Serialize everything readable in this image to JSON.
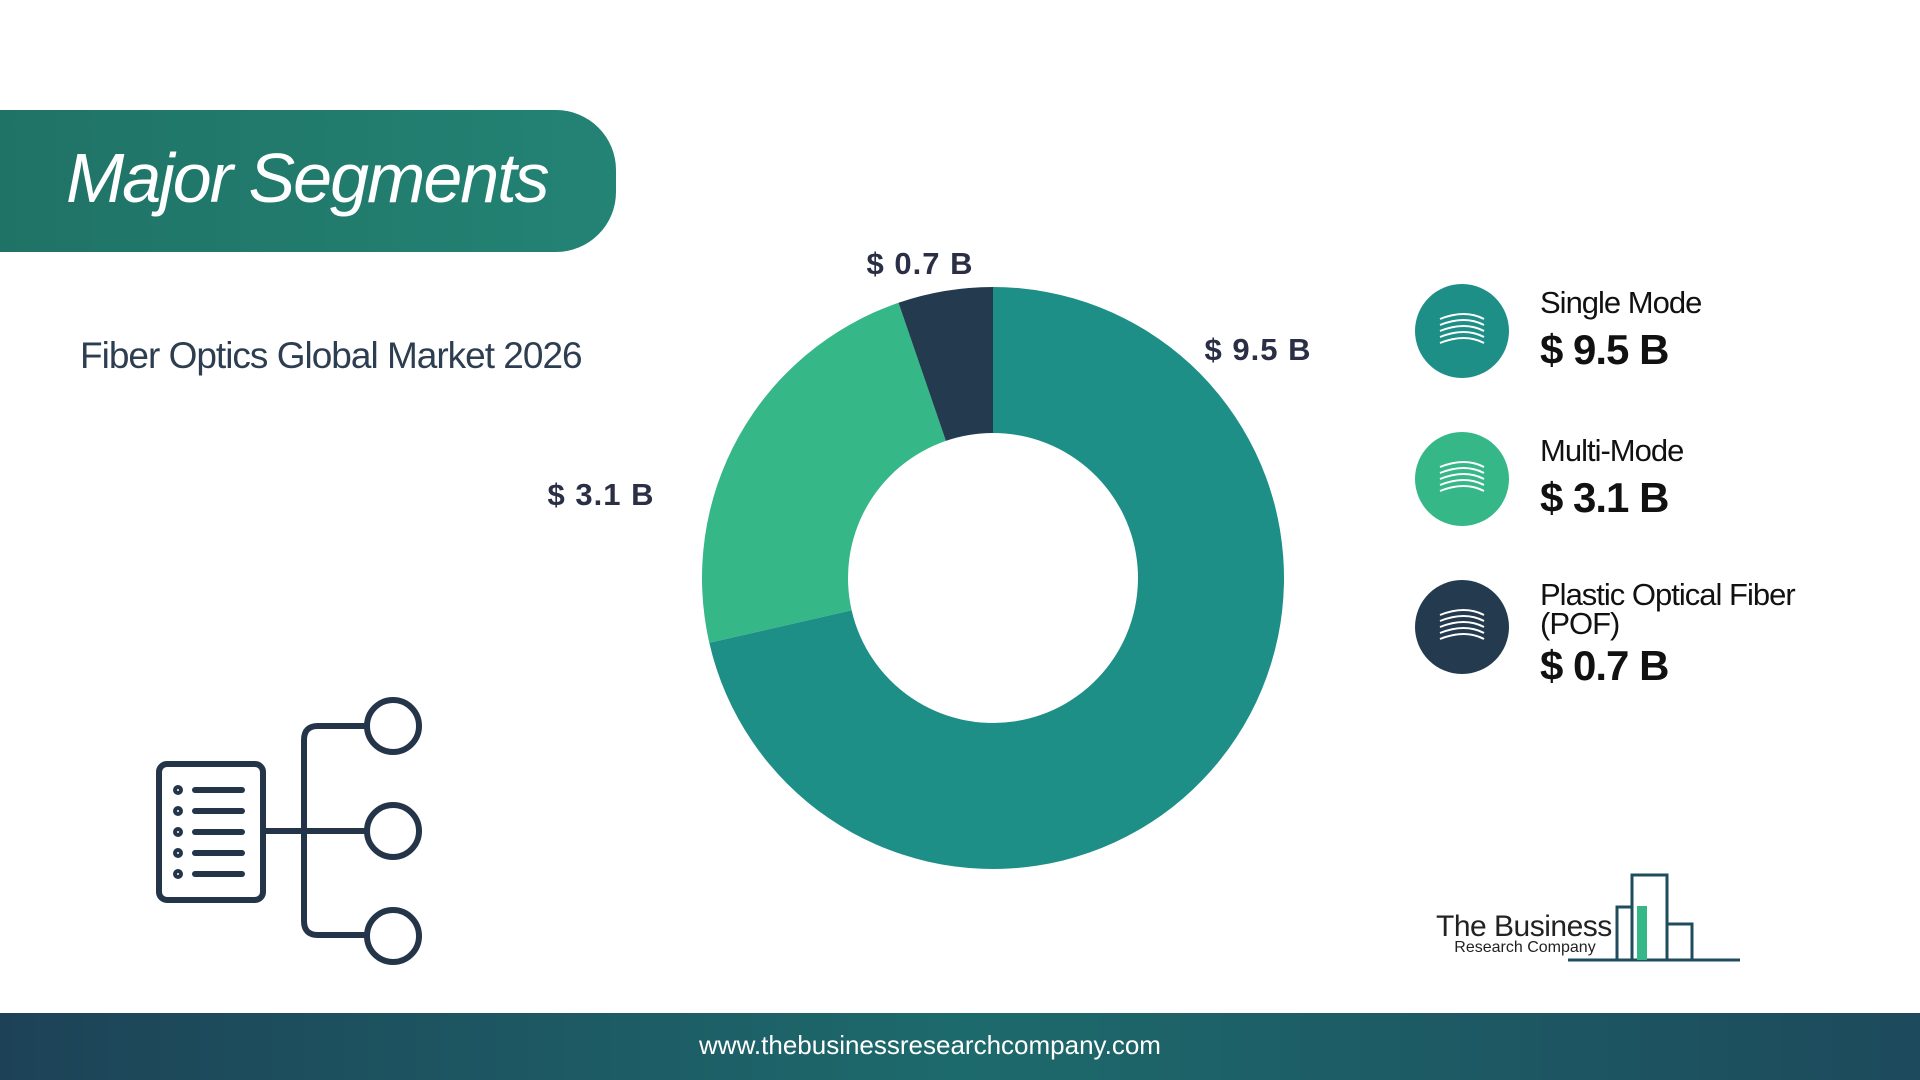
{
  "banner": "Major Segments",
  "chart_data": {
    "type": "pie",
    "donut": true,
    "title": "Fiber Optics Global Market 2026",
    "categories": [
      "Single Mode",
      "Multi-Mode",
      "Plastic Optical Fiber (POF)"
    ],
    "values": [
      9.5,
      3.1,
      0.7
    ],
    "value_labels": [
      "$ 9.5 B",
      "$ 3.1 B",
      "$ 0.7 B"
    ],
    "colors": [
      "#1d8f87",
      "#35b787",
      "#233a4f"
    ]
  },
  "logo": {
    "line1": "The Business",
    "line2": "Research Company"
  },
  "footer": {
    "url": "www.thebusinessresearchcompany.com"
  }
}
